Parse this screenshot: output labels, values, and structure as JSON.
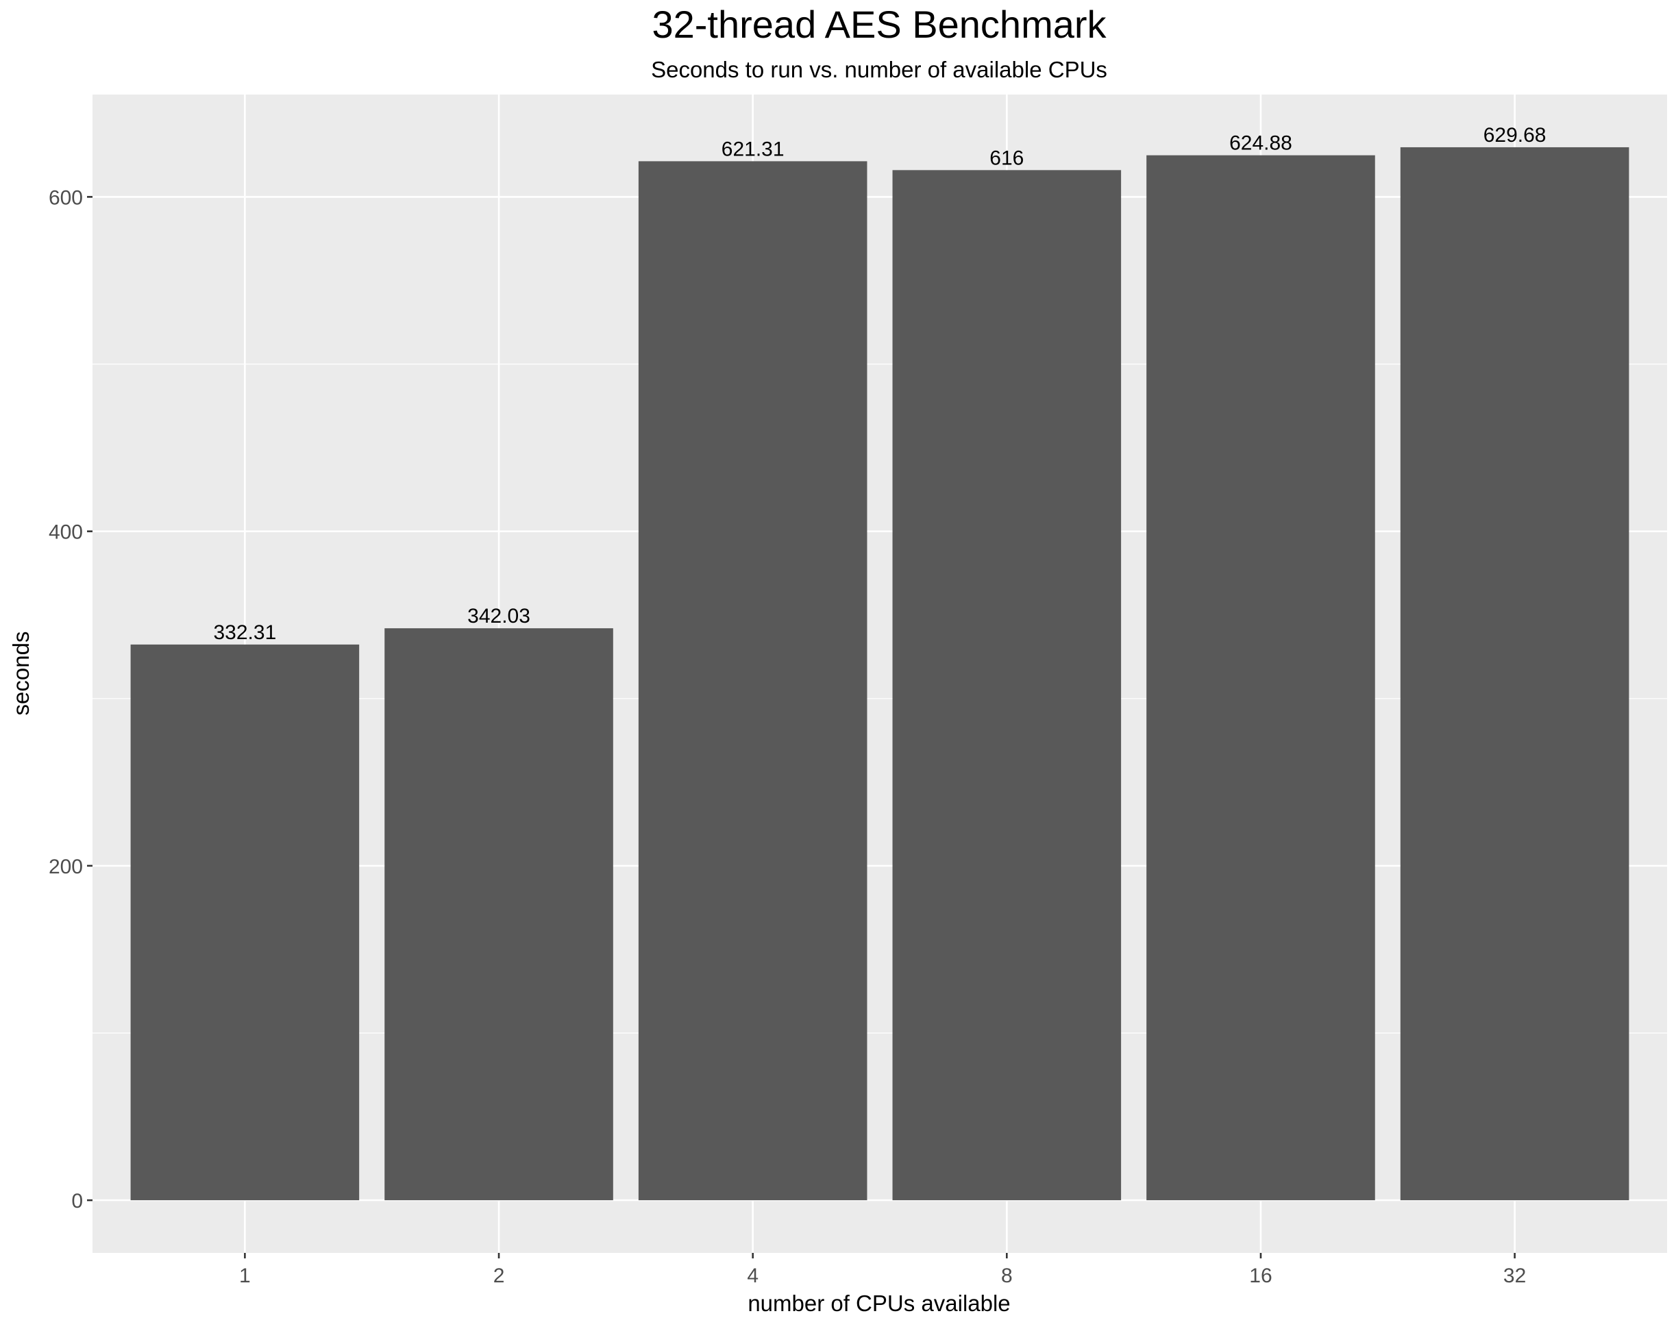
{
  "chart_data": {
    "type": "bar",
    "title": "32-thread AES Benchmark",
    "subtitle": "Seconds to run vs. number of available CPUs",
    "xlabel": "number of CPUs available",
    "ylabel": "seconds",
    "categories": [
      "1",
      "2",
      "4",
      "8",
      "16",
      "32"
    ],
    "values": [
      332.31,
      342.03,
      621.31,
      616,
      624.88,
      629.68
    ],
    "data_labels": [
      "332.31",
      "342.03",
      "621.31",
      "616",
      "624.88",
      "629.68"
    ],
    "y_ticks": [
      0,
      200,
      400,
      600
    ],
    "y_tick_labels": [
      "0",
      "200",
      "400",
      "600"
    ],
    "ylim": [
      -31.5,
      661.2
    ],
    "grid": true,
    "legend": "none",
    "colors": {
      "bar": "#595959",
      "panel_background": "#ebebeb",
      "gridline": "#ffffff",
      "axis_text": "#4d4d4d",
      "title_text": "#000000"
    }
  }
}
